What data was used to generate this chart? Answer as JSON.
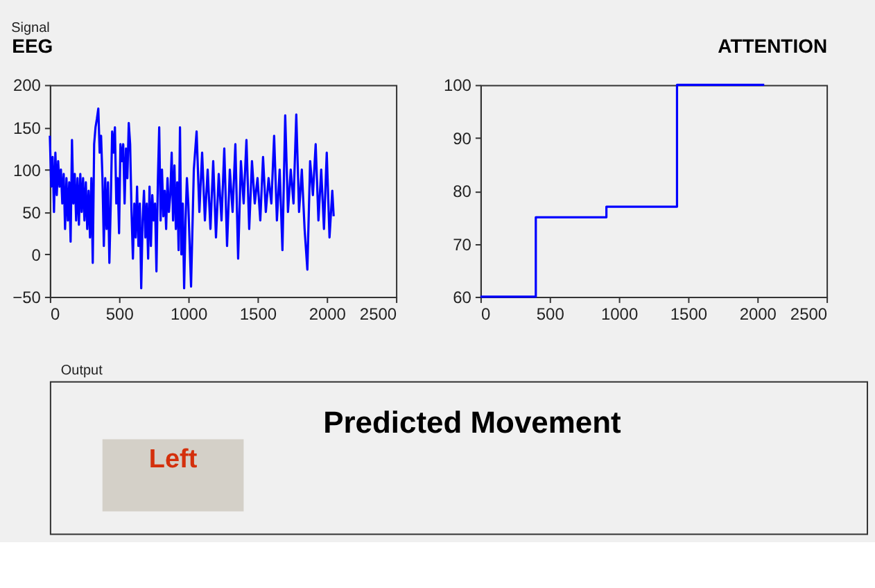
{
  "chart_data": [
    {
      "type": "line",
      "title": "EEG",
      "annotations": [
        "Signal"
      ],
      "xlim": [
        0,
        2500
      ],
      "xticks": [
        0,
        500,
        1000,
        1500,
        2000,
        2500
      ],
      "ylim": [
        -50,
        200
      ],
      "yticks": [
        -50,
        0,
        50,
        100,
        150,
        200
      ],
      "grid": false,
      "x": [
        0,
        10,
        20,
        30,
        40,
        50,
        60,
        70,
        80,
        90,
        100,
        110,
        120,
        130,
        140,
        150,
        160,
        170,
        180,
        190,
        200,
        210,
        220,
        230,
        240,
        250,
        260,
        270,
        280,
        290,
        300,
        310,
        320,
        330,
        340,
        350,
        360,
        370,
        380,
        390,
        400,
        410,
        420,
        430,
        440,
        450,
        460,
        470,
        480,
        490,
        500,
        510,
        520,
        530,
        540,
        550,
        560,
        570,
        580,
        590,
        600,
        610,
        620,
        630,
        640,
        650,
        660,
        670,
        680,
        690,
        700,
        710,
        720,
        730,
        740,
        750,
        760,
        770,
        780,
        790,
        800,
        810,
        820,
        830,
        840,
        850,
        860,
        870,
        880,
        890,
        900,
        910,
        920,
        930,
        940,
        950,
        960,
        970,
        980,
        990,
        1000,
        1020,
        1040,
        1060,
        1080,
        1100,
        1120,
        1140,
        1160,
        1180,
        1200,
        1220,
        1240,
        1260,
        1280,
        1300,
        1320,
        1340,
        1360,
        1380,
        1400,
        1420,
        1440,
        1460,
        1480,
        1500,
        1520,
        1540,
        1560,
        1580,
        1600,
        1620,
        1640,
        1660,
        1680,
        1700,
        1720,
        1740,
        1760,
        1780,
        1800,
        1820,
        1840,
        1860,
        1880,
        1900,
        1920,
        1940,
        1960,
        1980,
        2000,
        2020,
        2040,
        2050
      ],
      "series": [
        {
          "color": "#0000ff",
          "values": [
            140,
            80,
            115,
            50,
            120,
            70,
            110,
            80,
            100,
            60,
            95,
            30,
            90,
            40,
            85,
            15,
            135,
            60,
            95,
            40,
            90,
            35,
            95,
            50,
            90,
            40,
            85,
            30,
            75,
            20,
            90,
            -10,
            130,
            150,
            160,
            172,
            120,
            140,
            90,
            10,
            90,
            30,
            85,
            -10,
            60,
            145,
            120,
            150,
            60,
            90,
            25,
            130,
            110,
            130,
            60,
            125,
            90,
            155,
            130,
            50,
            -5,
            60,
            20,
            80,
            10,
            60,
            -40,
            40,
            75,
            20,
            60,
            -5,
            80,
            10,
            70,
            40,
            60,
            -20,
            85,
            150,
            40,
            100,
            45,
            75,
            30,
            90,
            50,
            70,
            120,
            40,
            105,
            30,
            85,
            5,
            150,
            0,
            60,
            -40,
            40,
            90,
            60,
            -38,
            100,
            145,
            50,
            120,
            40,
            100,
            30,
            110,
            20,
            95,
            40,
            125,
            10,
            100,
            50,
            130,
            -5,
            110,
            60,
            135,
            30,
            110,
            60,
            90,
            40,
            115,
            50,
            90,
            60,
            140,
            40,
            100,
            5,
            164,
            50,
            100,
            60,
            165,
            50,
            100,
            30,
            -18,
            110,
            70,
            130,
            40,
            100,
            30,
            120,
            20,
            75,
            45
          ]
        }
      ]
    },
    {
      "type": "step",
      "title": "ATTENTION",
      "xlim": [
        0,
        2500
      ],
      "xticks": [
        0,
        500,
        1000,
        1500,
        2000,
        2500
      ],
      "ylim": [
        60,
        100
      ],
      "yticks": [
        60,
        70,
        80,
        90,
        100
      ],
      "grid": false,
      "x": [
        0,
        400,
        910,
        1420,
        2050
      ],
      "series": [
        {
          "color": "#0000ff",
          "values": [
            60,
            75,
            77,
            100,
            100
          ]
        }
      ]
    },
    {
      "type": "other",
      "title": "Predicted Movement",
      "annotations": [
        "Output",
        "Left"
      ],
      "colors": [
        "#d4300c"
      ]
    }
  ]
}
